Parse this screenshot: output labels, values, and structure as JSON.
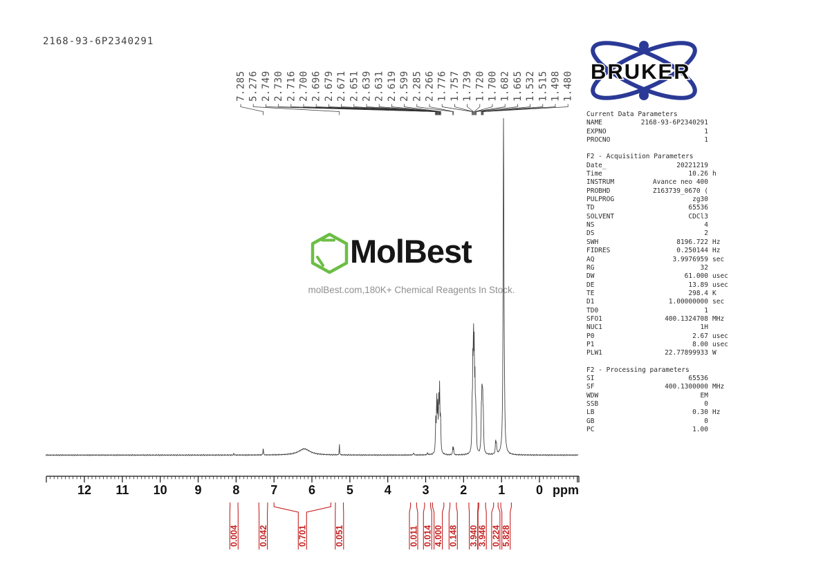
{
  "title": "2168-93-6P2340291",
  "watermark": {
    "brand": "MolBest",
    "tagline": "molBest.com,180K+ Chemical Reagents In Stock.",
    "green": "#6cbe45",
    "text_color": "#161616",
    "tagline_color": "#8f8f8f"
  },
  "bruker": {
    "label": "BRUKER",
    "blue": "#2b3a96",
    "text_color": "#0d0d0d"
  },
  "params": {
    "sections": [
      {
        "header": "Current Data Parameters",
        "rows": [
          {
            "k": "NAME",
            "v": "2168-93-6P2340291",
            "u": ""
          },
          {
            "k": "EXPNO",
            "v": "1",
            "u": ""
          },
          {
            "k": "PROCNO",
            "v": "1",
            "u": ""
          }
        ]
      },
      {
        "header": "F2 - Acquisition Parameters",
        "rows": [
          {
            "k": "Date_",
            "v": "20221219",
            "u": ""
          },
          {
            "k": "Time",
            "v": "10.26",
            "u": "h"
          },
          {
            "k": "INSTRUM",
            "v": "Avance neo 400",
            "u": ""
          },
          {
            "k": "PROBHD",
            "v": "Z163739_0670 (",
            "u": ""
          },
          {
            "k": "PULPROG",
            "v": "zg30",
            "u": ""
          },
          {
            "k": "TD",
            "v": "65536",
            "u": ""
          },
          {
            "k": "SOLVENT",
            "v": "CDCl3",
            "u": ""
          },
          {
            "k": "NS",
            "v": "4",
            "u": ""
          },
          {
            "k": "DS",
            "v": "2",
            "u": ""
          },
          {
            "k": "SWH",
            "v": "8196.722",
            "u": "Hz"
          },
          {
            "k": "FIDRES",
            "v": "0.250144",
            "u": "Hz"
          },
          {
            "k": "AQ",
            "v": "3.9976959",
            "u": "sec"
          },
          {
            "k": "RG",
            "v": "32",
            "u": ""
          },
          {
            "k": "DW",
            "v": "61.000",
            "u": "usec"
          },
          {
            "k": "DE",
            "v": "13.89",
            "u": "usec"
          },
          {
            "k": "TE",
            "v": "298.4",
            "u": "K"
          },
          {
            "k": "D1",
            "v": "1.00000000",
            "u": "sec"
          },
          {
            "k": "TD0",
            "v": "1",
            "u": ""
          },
          {
            "k": "SFO1",
            "v": "400.1324708",
            "u": "MHz"
          },
          {
            "k": "NUC1",
            "v": "1H",
            "u": ""
          },
          {
            "k": "P0",
            "v": "2.67",
            "u": "usec"
          },
          {
            "k": "P1",
            "v": "8.00",
            "u": "usec"
          },
          {
            "k": "PLW1",
            "v": "22.77899933",
            "u": "W"
          }
        ]
      },
      {
        "header": "F2 - Processing parameters",
        "rows": [
          {
            "k": "SI",
            "v": "65536",
            "u": ""
          },
          {
            "k": "SF",
            "v": "400.1300000",
            "u": "MHz"
          },
          {
            "k": "WDW",
            "v": "EM",
            "u": ""
          },
          {
            "k": "SSB",
            "v": "0",
            "u": ""
          },
          {
            "k": "LB",
            "v": "0.30",
            "u": "Hz"
          },
          {
            "k": "GB",
            "v": "0",
            "u": ""
          },
          {
            "k": "PC",
            "v": "1.00",
            "u": ""
          }
        ]
      }
    ]
  },
  "chart_data": {
    "type": "line",
    "title": "2168-93-6P2340291",
    "xlabel": "ppm",
    "x_axis": {
      "range": [
        13.0,
        -1.0
      ],
      "major_ticks": [
        12,
        11,
        10,
        9,
        8,
        7,
        6,
        5,
        4,
        3,
        2,
        1,
        0
      ],
      "minor_tick_step": 0.1,
      "unit_label": "ppm"
    },
    "peak_labels": [
      "7.285",
      "5.276",
      "2.749",
      "2.730",
      "2.716",
      "2.700",
      "2.696",
      "2.679",
      "2.671",
      "2.651",
      "2.639",
      "2.631",
      "2.619",
      "2.599",
      "2.285",
      "2.266",
      "1.776",
      "1.757",
      "1.739",
      "1.720",
      "1.700",
      "1.682",
      "1.665",
      "1.532",
      "1.515",
      "1.498",
      "1.480"
    ],
    "peaks": [
      [
        8.06,
        2,
        0.01
      ],
      [
        7.285,
        12,
        0.006
      ],
      [
        6.2,
        9,
        0.18
      ],
      [
        5.276,
        16,
        0.006
      ],
      [
        3.32,
        3,
        0.012
      ],
      [
        2.95,
        3,
        0.012
      ],
      [
        2.735,
        45,
        0.009
      ],
      [
        2.708,
        75,
        0.01
      ],
      [
        2.683,
        60,
        0.009
      ],
      [
        2.656,
        65,
        0.009
      ],
      [
        2.633,
        90,
        0.01
      ],
      [
        2.608,
        48,
        0.009
      ],
      [
        2.285,
        11,
        0.007
      ],
      [
        2.266,
        11,
        0.007
      ],
      [
        1.776,
        60,
        0.008
      ],
      [
        1.757,
        110,
        0.008
      ],
      [
        1.739,
        150,
        0.009
      ],
      [
        1.72,
        130,
        0.009
      ],
      [
        1.7,
        85,
        0.008
      ],
      [
        1.682,
        55,
        0.008
      ],
      [
        1.665,
        35,
        0.008
      ],
      [
        1.532,
        50,
        0.009
      ],
      [
        1.515,
        75,
        0.01
      ],
      [
        1.498,
        70,
        0.01
      ],
      [
        1.48,
        45,
        0.009
      ],
      [
        1.155,
        18,
        0.01
      ],
      [
        1.134,
        14,
        0.01
      ],
      [
        0.947,
        485,
        0.012
      ],
      [
        0.925,
        35,
        0.014
      ]
    ],
    "integrals": [
      {
        "value": "0.004",
        "region": [
          8.16,
          7.95
        ]
      },
      {
        "value": "0.042",
        "region": [
          7.4,
          7.17
        ]
      },
      {
        "value": "0.701",
        "region": [
          7.0,
          5.5
        ]
      },
      {
        "value": "0.051",
        "region": [
          5.38,
          5.17
        ]
      },
      {
        "value": "0.011",
        "region": [
          3.4,
          3.24
        ]
      },
      {
        "value": "0.014",
        "region": [
          3.03,
          2.87
        ]
      },
      {
        "value": "4.000",
        "region": [
          2.82,
          2.52
        ]
      },
      {
        "value": "0.148",
        "region": [
          2.36,
          2.19
        ]
      },
      {
        "value": "3.940",
        "region": [
          1.86,
          1.62
        ]
      },
      {
        "value": "3.946",
        "region": [
          1.6,
          1.42
        ]
      },
      {
        "value": "0.224",
        "region": [
          1.21,
          1.09
        ]
      },
      {
        "value": "5.828",
        "region": [
          1.02,
          0.74
        ]
      }
    ],
    "colors": {
      "trace": "#404040",
      "peak_label_text": "#4d4d4d",
      "pointer_line": "#333333",
      "axis": "#111111",
      "integral": "#c42222"
    }
  }
}
